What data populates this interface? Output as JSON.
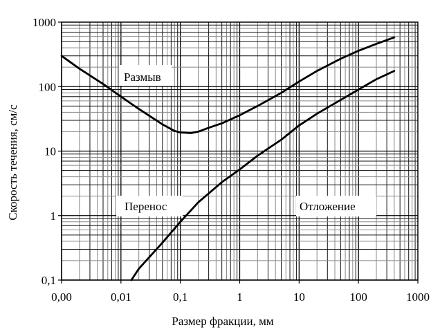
{
  "chart_data": {
    "type": "line",
    "title": "",
    "xlabel": "Размер фракции, мм",
    "ylabel": "Скорость течения, см/с",
    "xscale": "log",
    "yscale": "log",
    "xlim": [
      0.001,
      1000
    ],
    "ylim": [
      0.1,
      1000
    ],
    "grid": true,
    "x_ticks": [
      0.001,
      0.01,
      0.1,
      1,
      10,
      100,
      1000
    ],
    "x_tick_labels": [
      "0,00",
      "0,01",
      "0,1",
      "1",
      "10",
      "100",
      "1000"
    ],
    "y_ticks": [
      0.1,
      1,
      10,
      100,
      1000
    ],
    "y_tick_labels": [
      "0,1",
      "1",
      "10",
      "100",
      "1000"
    ],
    "series": [
      {
        "name": "Размыв",
        "x": [
          0.001,
          0.002,
          0.005,
          0.01,
          0.02,
          0.05,
          0.08,
          0.1,
          0.15,
          0.2,
          0.3,
          0.5,
          1,
          2,
          5,
          10,
          20,
          50,
          100,
          200,
          400
        ],
        "y": [
          300,
          190,
          110,
          70,
          45,
          26,
          20.5,
          19.5,
          19,
          20,
          23,
          27,
          36,
          50,
          80,
          120,
          175,
          270,
          360,
          460,
          580
        ]
      },
      {
        "name": "Отложение",
        "x": [
          0.015,
          0.02,
          0.05,
          0.1,
          0.2,
          0.5,
          1,
          2,
          5,
          10,
          20,
          50,
          100,
          200,
          400
        ],
        "y": [
          0.1,
          0.15,
          0.38,
          0.8,
          1.6,
          3.3,
          5.2,
          8.5,
          15,
          25,
          38,
          62,
          90,
          130,
          175
        ]
      }
    ],
    "annotations": [
      {
        "text": "Размыв",
        "x": 0.03,
        "y": 150
      },
      {
        "text": "Перенос",
        "x": 0.03,
        "y": 1.5
      },
      {
        "text": "Отложение",
        "x": 30,
        "y": 1.5
      }
    ]
  }
}
